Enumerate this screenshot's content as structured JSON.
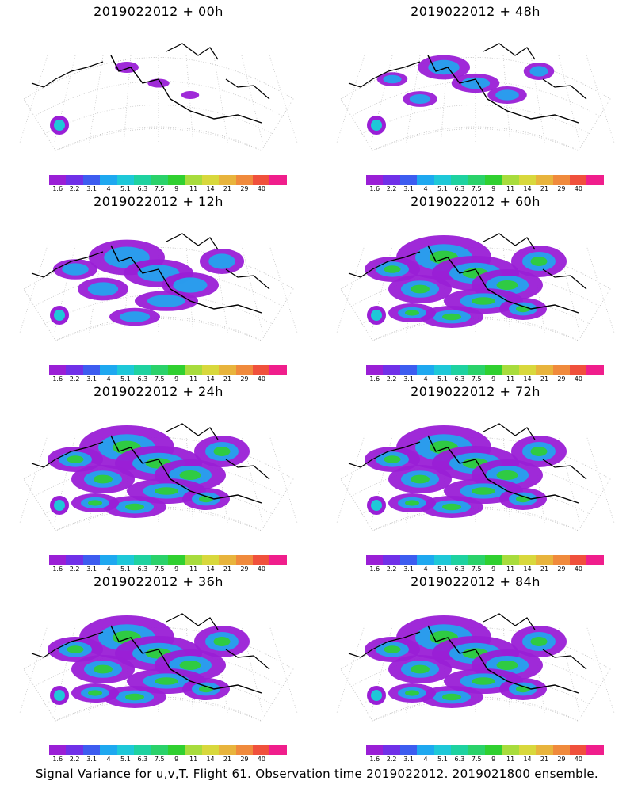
{
  "panels": [
    {
      "title": "2019022012 + 00h"
    },
    {
      "title": "2019022012 + 48h"
    },
    {
      "title": "2019022012 + 12h"
    },
    {
      "title": "2019022012 + 60h"
    },
    {
      "title": "2019022012 + 24h"
    },
    {
      "title": "2019022012 + 72h"
    },
    {
      "title": "2019022012 + 36h"
    },
    {
      "title": "2019022012 + 84h"
    }
  ],
  "colorbar": {
    "labels": [
      "1.6",
      "2.2",
      "3.1",
      "4",
      "5.1",
      "6.3",
      "7.5",
      "9",
      "11",
      "14",
      "21",
      "29",
      "40"
    ],
    "colors": [
      "#9a1fd6",
      "#7030e8",
      "#3d5cf0",
      "#1ea8f0",
      "#1ec8d8",
      "#1ed2a0",
      "#2ad26a",
      "#30d030",
      "#a8dc3c",
      "#d8d83c",
      "#e8b43c",
      "#f08a3c",
      "#f0503c",
      "#f01e8c"
    ]
  },
  "footer": "Signal Variance for u,v,T. Flight 61. Observation time 2019022012. 2019021800 ensemble.",
  "levels": [
    0.25,
    0.55,
    0.8,
    1.0,
    1.0,
    1.0,
    1.0,
    1.0
  ]
}
